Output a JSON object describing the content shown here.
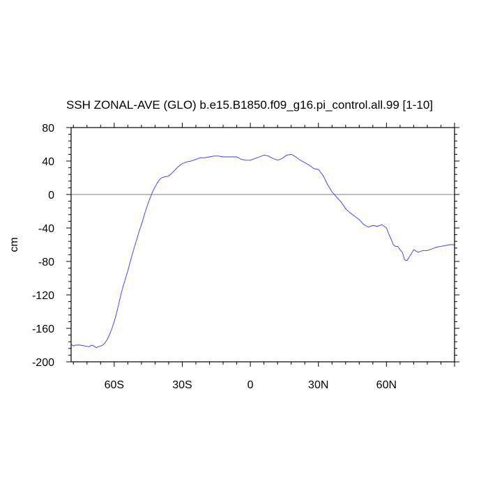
{
  "chart_data": {
    "type": "line",
    "title": "SSH ZONAL-AVE (GLO) b.e15.B1850.f09_g16.pi_control.all.99 [1-10]",
    "xlabel": "",
    "ylabel": "cm",
    "xlim": [
      -79,
      90
    ],
    "ylim": [
      -200,
      80
    ],
    "x_ticks": [
      {
        "value": -60,
        "label": "60S"
      },
      {
        "value": -30,
        "label": "30S"
      },
      {
        "value": 0,
        "label": "0"
      },
      {
        "value": 30,
        "label": "30N"
      },
      {
        "value": 60,
        "label": "60N"
      }
    ],
    "y_ticks": [
      {
        "value": 80,
        "label": "80"
      },
      {
        "value": 40,
        "label": "40"
      },
      {
        "value": 0,
        "label": "0"
      },
      {
        "value": -40,
        "label": "-40"
      },
      {
        "value": -80,
        "label": "-80"
      },
      {
        "value": -120,
        "label": "-120"
      },
      {
        "value": -160,
        "label": "-160"
      },
      {
        "value": -200,
        "label": "-200"
      }
    ],
    "reference_line": 0,
    "line_color": "#3333ff",
    "ref_color": "#999999",
    "series": [
      {
        "x": [
          -79,
          -78,
          -77,
          -75,
          -73,
          -71,
          -70,
          -69,
          -68,
          -67,
          -66,
          -65,
          -64,
          -63,
          -62,
          -61,
          -60,
          -59,
          -58,
          -57,
          -56,
          -55,
          -54,
          -53,
          -52,
          -51,
          -50,
          -49,
          -48,
          -47,
          -46,
          -45,
          -44,
          -43,
          -42,
          -41,
          -40,
          -39,
          -38,
          -36,
          -34,
          -32,
          -30,
          -28,
          -26,
          -24,
          -22,
          -20,
          -18,
          -16,
          -14,
          -12,
          -10,
          -8,
          -6,
          -4,
          -2,
          0,
          2,
          4,
          6,
          8,
          10,
          12,
          14,
          16,
          18,
          20,
          22,
          24,
          26,
          28,
          30,
          32,
          34,
          36,
          38,
          40,
          42,
          44,
          46,
          48,
          50,
          52,
          54,
          56,
          58,
          60,
          61,
          62,
          63,
          64,
          65,
          66,
          67,
          68,
          69,
          70,
          72,
          74,
          76,
          78,
          80,
          82,
          84,
          86,
          88,
          90
        ],
        "y": [
          -179,
          -181,
          -180,
          -180,
          -181,
          -182,
          -180,
          -181,
          -183,
          -182,
          -181,
          -180,
          -177,
          -173,
          -167,
          -160,
          -152,
          -142,
          -131,
          -119,
          -109,
          -100,
          -91,
          -81,
          -71,
          -62,
          -53,
          -44,
          -36,
          -27,
          -18,
          -10,
          -3,
          4,
          9,
          14,
          18,
          20,
          21,
          22,
          27,
          33,
          37,
          39,
          40,
          42,
          44,
          44,
          45,
          46,
          46,
          45,
          45,
          45,
          45,
          42,
          41,
          41,
          43,
          45,
          47,
          46,
          43,
          41,
          43,
          47,
          48,
          45,
          41,
          38,
          35,
          31,
          30,
          23,
          12,
          3,
          -3,
          -9,
          -17,
          -22,
          -26,
          -30,
          -36,
          -39,
          -37,
          -38,
          -36,
          -40,
          -47,
          -53,
          -60,
          -62,
          -62,
          -66,
          -69,
          -78,
          -79,
          -75,
          -66,
          -69,
          -67,
          -67,
          -65,
          -63,
          -62,
          -61,
          -60,
          -60
        ]
      }
    ]
  }
}
